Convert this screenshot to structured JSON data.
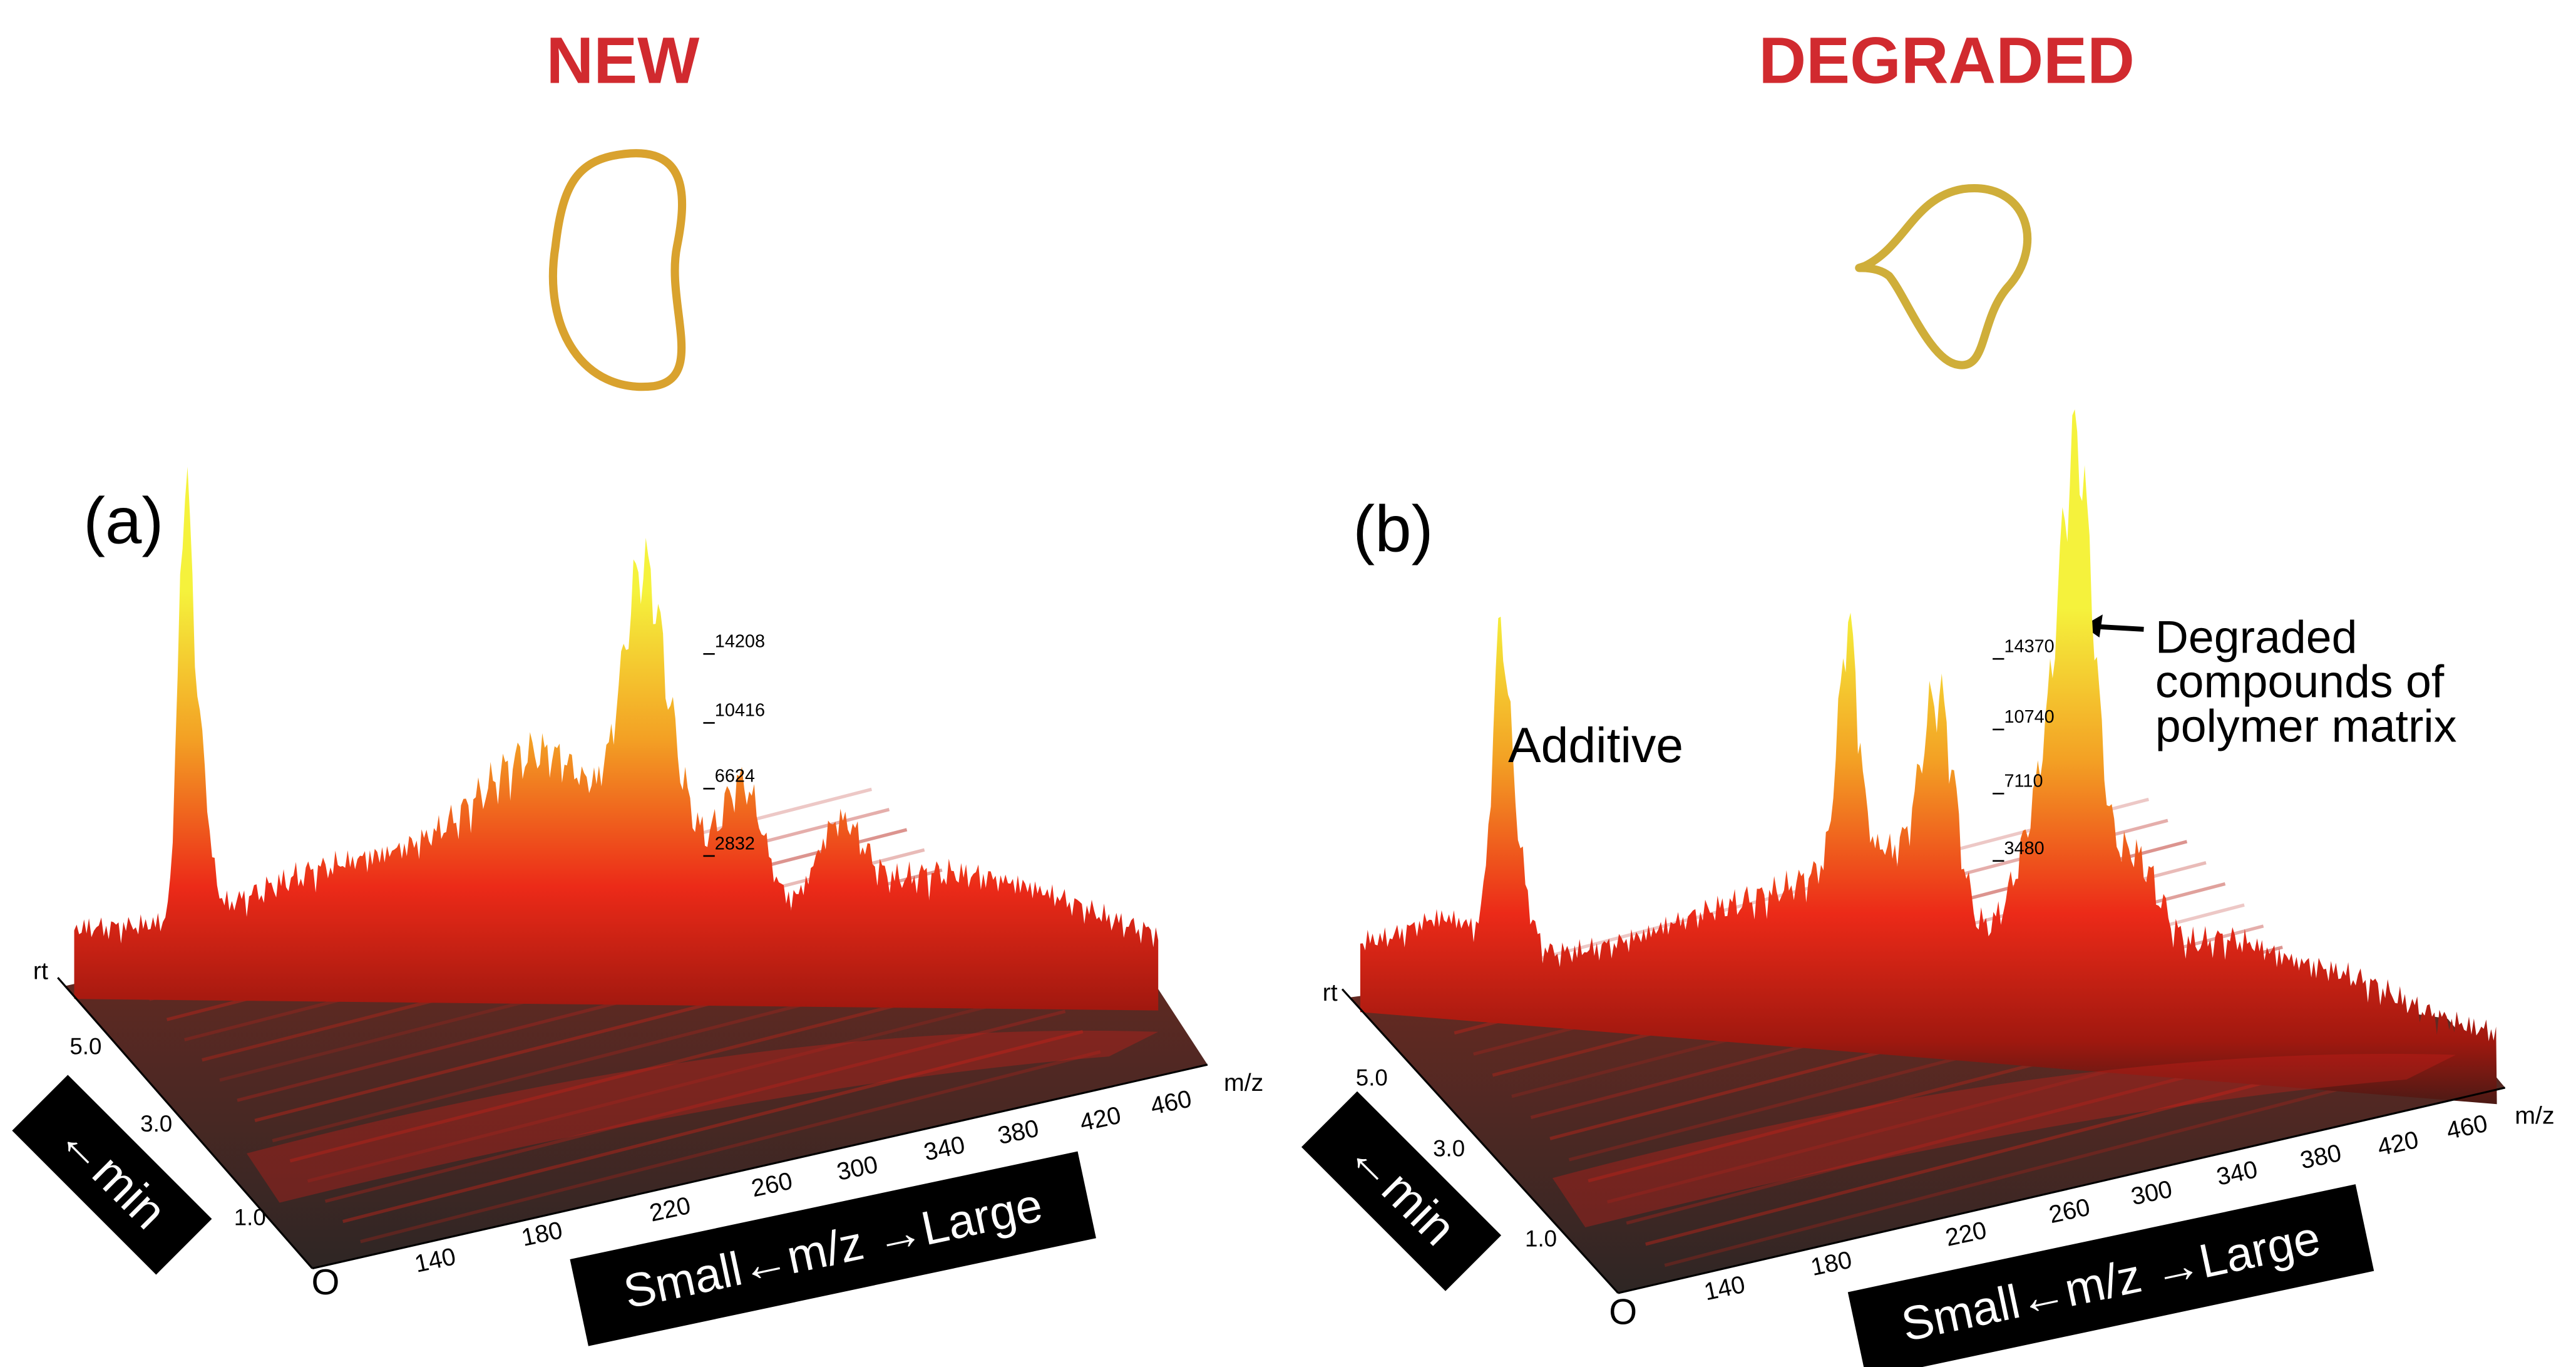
{
  "panels": [
    {
      "heading": "NEW",
      "label": "(a)",
      "z_ticks": [
        "14208",
        "10416",
        "6624",
        "2832"
      ],
      "rt_label": "rt",
      "rt_ticks": [
        "5.0",
        "3.0",
        "1.0"
      ],
      "origin": "O",
      "mz_label": "m/z",
      "mz_ticks": [
        "140",
        "180",
        "220",
        "260",
        "300",
        "340",
        "380",
        "420",
        "460"
      ],
      "rt_box": "←min",
      "mz_box": "Small←m/z →Large"
    },
    {
      "heading": "DEGRADED",
      "label": "(b)",
      "z_ticks": [
        "14370",
        "10740",
        "7110",
        "3480"
      ],
      "rt_label": "rt",
      "rt_ticks": [
        "5.0",
        "3.0",
        "1.0"
      ],
      "origin": "O",
      "mz_label": "m/z",
      "mz_ticks": [
        "140",
        "180",
        "220",
        "260",
        "300",
        "340",
        "380",
        "420",
        "460"
      ],
      "rt_box": "←min",
      "mz_box": "Small←m/z →Large",
      "additive_label": "Additive",
      "annotation_lines": [
        "Degraded",
        "compounds of",
        "polymer matrix"
      ]
    }
  ]
}
